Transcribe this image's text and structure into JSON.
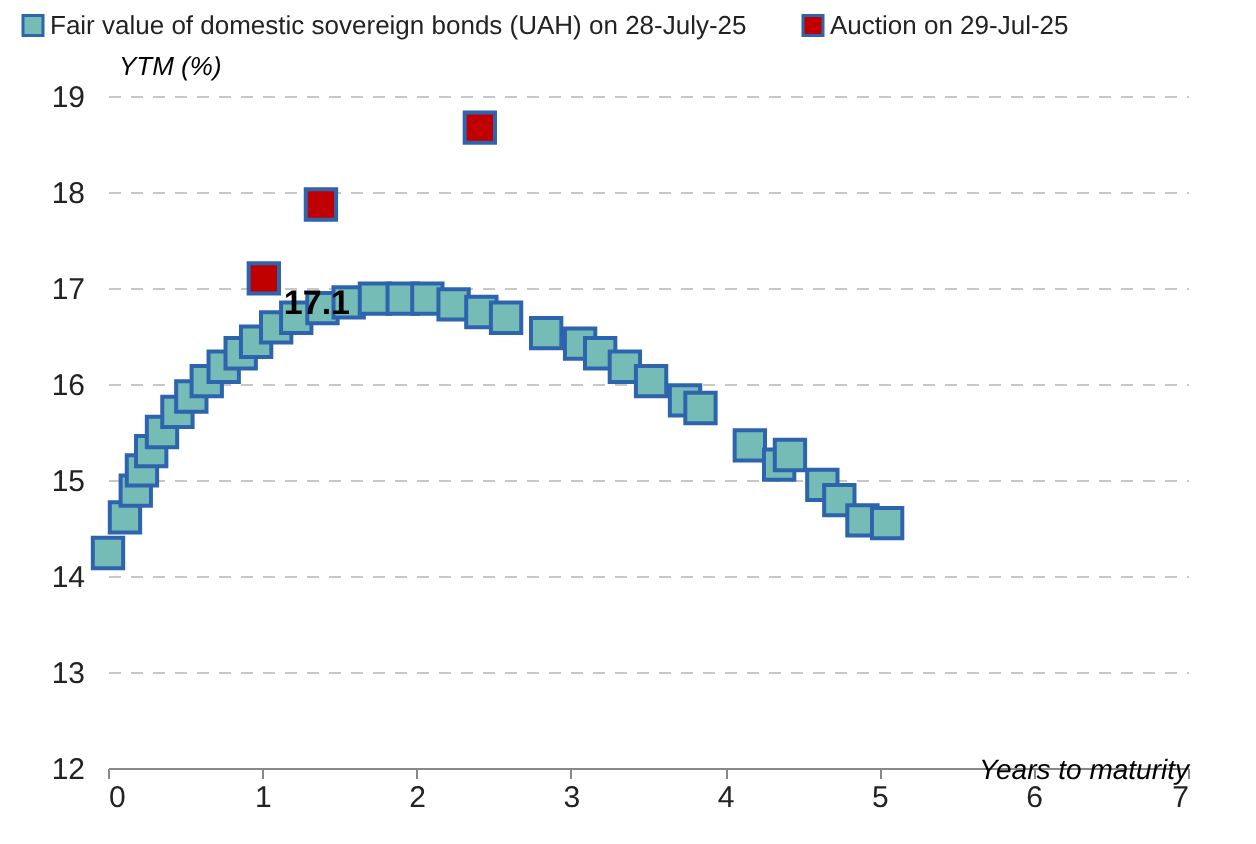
{
  "chart_data": {
    "type": "scatter",
    "xlabel": "Years to maturity",
    "ylabel": "YTM (%)",
    "xlim": [
      0,
      7
    ],
    "xticks": [
      0,
      1,
      2,
      3,
      4,
      5,
      6,
      7
    ],
    "ylim": [
      12,
      19
    ],
    "yticks": [
      12,
      13,
      14,
      15,
      16,
      17,
      18,
      19
    ],
    "grid": "y",
    "legend": "top",
    "marker": "square",
    "series": [
      {
        "name": "Fair value of domestic sovereign bonds (UAH) on 28-July-25",
        "color": "#76bcb6",
        "x": [
          0.0,
          0.11,
          0.18,
          0.22,
          0.28,
          0.35,
          0.45,
          0.54,
          0.64,
          0.75,
          0.86,
          0.96,
          1.09,
          1.22,
          1.39,
          1.56,
          1.73,
          1.91,
          2.07,
          2.24,
          2.42,
          2.58,
          2.84,
          3.06,
          3.19,
          3.35,
          3.52,
          3.74,
          3.84,
          4.16,
          4.35,
          4.42,
          4.63,
          4.74,
          4.89,
          5.05
        ],
        "values": [
          14.24,
          14.61,
          14.89,
          15.1,
          15.3,
          15.5,
          15.71,
          15.87,
          16.03,
          16.18,
          16.32,
          16.44,
          16.59,
          16.69,
          16.79,
          16.85,
          16.89,
          16.89,
          16.89,
          16.83,
          16.75,
          16.69,
          16.53,
          16.42,
          16.32,
          16.18,
          16.03,
          15.83,
          15.75,
          15.36,
          15.16,
          15.26,
          14.95,
          14.79,
          14.58,
          14.55
        ]
      },
      {
        "name": "Auction on 29-Jul-25",
        "color": "#c00000",
        "x": [
          1.01,
          1.38,
          2.41
        ],
        "values": [
          17.1,
          17.87,
          18.67
        ],
        "value_labels": [
          "17.1",
          null,
          null
        ]
      }
    ]
  }
}
